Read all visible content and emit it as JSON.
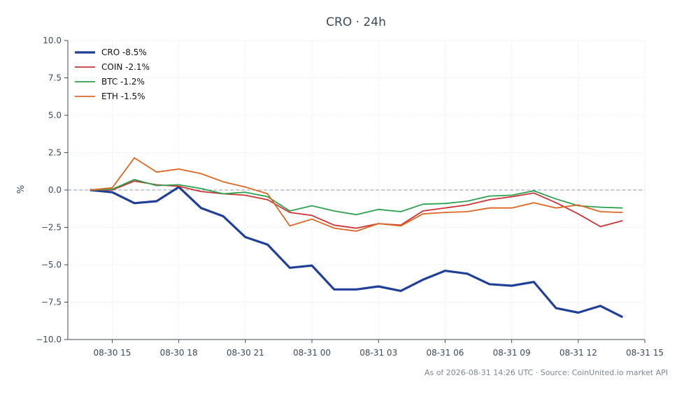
{
  "chart_data": {
    "type": "line",
    "title": "CRO · 24h",
    "xlabel": "",
    "ylabel": "%",
    "ylim": [
      -10.0,
      10.0
    ],
    "yticks": [
      10.0,
      7.5,
      5.0,
      2.5,
      0.0,
      -2.5,
      -5.0,
      -7.5,
      -10.0
    ],
    "ytick_labels": [
      "10.0",
      "7.5",
      "5.0",
      "2.5",
      "0.0",
      "−2.5",
      "−5.0",
      "−7.5",
      "−10.0"
    ],
    "xlim": [
      "2026-08-30 13:00",
      "2026-08-31 15:00"
    ],
    "xtick_labels": [
      "08-30 15",
      "08-30 18",
      "08-30 21",
      "08-31 00",
      "08-31 03",
      "08-31 06",
      "08-31 09",
      "08-31 12",
      "08-31 15"
    ],
    "x": [
      "2026-08-30 14:00",
      "2026-08-30 15:00",
      "2026-08-30 16:00",
      "2026-08-30 17:00",
      "2026-08-30 18:00",
      "2026-08-30 19:00",
      "2026-08-30 20:00",
      "2026-08-30 21:00",
      "2026-08-30 22:00",
      "2026-08-30 23:00",
      "2026-08-31 00:00",
      "2026-08-31 01:00",
      "2026-08-31 02:00",
      "2026-08-31 03:00",
      "2026-08-31 04:00",
      "2026-08-31 05:00",
      "2026-08-31 06:00",
      "2026-08-31 07:00",
      "2026-08-31 08:00",
      "2026-08-31 09:00",
      "2026-08-31 10:00",
      "2026-08-31 11:00",
      "2026-08-31 12:00",
      "2026-08-31 13:00",
      "2026-08-31 14:00"
    ],
    "series": [
      {
        "name": "CRO -8.5%",
        "color": "#1f3f99",
        "width": 3.2,
        "values": [
          0.0,
          -0.15,
          -0.88,
          -0.75,
          0.2,
          -1.2,
          -1.75,
          -3.15,
          -3.65,
          -5.2,
          -5.05,
          -6.65,
          -6.65,
          -6.45,
          -6.75,
          -6.0,
          -5.4,
          -5.6,
          -6.3,
          -6.4,
          -6.15,
          -7.9,
          -8.2,
          -7.75,
          -8.5
        ]
      },
      {
        "name": "COIN -2.1%",
        "color": "#cc3333",
        "width": 1.8,
        "values": [
          0.0,
          0.0,
          0.6,
          0.35,
          0.25,
          -0.1,
          -0.25,
          -0.35,
          -0.65,
          -1.5,
          -1.7,
          -2.35,
          -2.55,
          -2.25,
          -2.35,
          -1.4,
          -1.2,
          -1.0,
          -0.65,
          -0.45,
          -0.2,
          -0.85,
          -1.6,
          -2.45,
          -2.05
        ]
      },
      {
        "name": "BTC -1.2%",
        "color": "#2ca14f",
        "width": 1.8,
        "values": [
          0.0,
          0.05,
          0.7,
          0.3,
          0.35,
          0.1,
          -0.25,
          -0.15,
          -0.45,
          -1.4,
          -1.05,
          -1.4,
          -1.65,
          -1.3,
          -1.45,
          -0.95,
          -0.9,
          -0.75,
          -0.4,
          -0.35,
          -0.05,
          -0.6,
          -1.05,
          -1.15,
          -1.2
        ]
      },
      {
        "name": "ETH -1.5%",
        "color": "#dd6622",
        "width": 1.8,
        "values": [
          0.0,
          0.15,
          2.15,
          1.2,
          1.4,
          1.1,
          0.55,
          0.2,
          -0.25,
          -2.4,
          -1.95,
          -2.55,
          -2.75,
          -2.25,
          -2.4,
          -1.6,
          -1.5,
          -1.45,
          -1.2,
          -1.2,
          -0.85,
          -1.2,
          -1.0,
          -1.45,
          -1.5
        ]
      }
    ],
    "zero_line": true,
    "grid": true,
    "legend_position": "top-left"
  },
  "footer": "As of 2026-08-31 14:26 UTC · Source: CoinUnited.io market API"
}
